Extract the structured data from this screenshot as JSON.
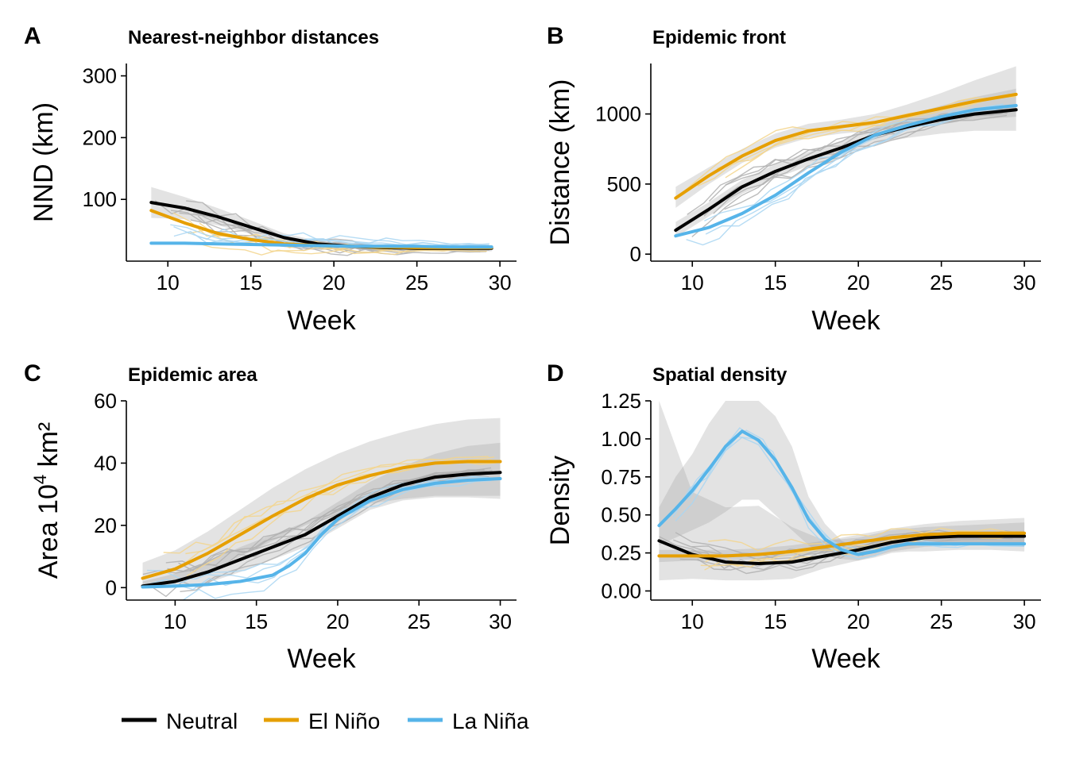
{
  "figure": {
    "legend": {
      "position": "bottom-left",
      "items": [
        {
          "label": "Neutral",
          "color": "#000000"
        },
        {
          "label": "El Niño",
          "color": "#E69F00"
        },
        {
          "label": "La Niña",
          "color": "#56B4E9"
        }
      ]
    }
  },
  "chart_data": [
    {
      "panel": "A",
      "title": "Nearest-neighbor distances",
      "type": "line",
      "xlabel": "Week",
      "ylabel": "NND (km)",
      "xlim": [
        7.5,
        31
      ],
      "ylim": [
        0,
        320
      ],
      "xticks": [
        10,
        15,
        20,
        25,
        30
      ],
      "yticks": [
        100,
        200,
        300
      ],
      "grid": false,
      "series": [
        {
          "name": "Neutral",
          "color": "#000000",
          "x": [
            9,
            11,
            13,
            15,
            17,
            19,
            21,
            23,
            25,
            27,
            29.5
          ],
          "y": [
            95,
            86,
            72,
            55,
            38,
            28,
            24,
            22,
            21,
            21,
            21
          ],
          "band": [
            [
              70,
              120
            ],
            [
              68,
              104
            ],
            [
              58,
              86
            ],
            [
              44,
              66
            ],
            [
              31,
              45
            ],
            [
              23,
              33
            ],
            [
              20,
              28
            ],
            [
              18,
              26
            ],
            [
              17,
              25
            ],
            [
              17,
              25
            ],
            [
              16,
              26
            ]
          ]
        },
        {
          "name": "El Niño",
          "color": "#E69F00",
          "x": [
            9,
            11,
            13,
            15,
            17,
            19,
            21,
            23,
            25,
            27,
            29.5
          ],
          "y": [
            82,
            62,
            45,
            35,
            28,
            25,
            24,
            23,
            22,
            22,
            22
          ]
        },
        {
          "name": "La Niña",
          "color": "#56B4E9",
          "x": [
            9,
            11,
            13,
            15,
            17,
            19,
            21,
            23,
            25,
            27,
            29.5
          ],
          "y": [
            29,
            29,
            28,
            27,
            26,
            25,
            24,
            24,
            24,
            23,
            23
          ]
        }
      ]
    },
    {
      "panel": "B",
      "title": "Epidemic front",
      "type": "line",
      "xlabel": "Week",
      "ylabel": "Distance (km)",
      "xlim": [
        7.5,
        31
      ],
      "ylim": [
        -50,
        1360
      ],
      "xticks": [
        10,
        15,
        20,
        25,
        30
      ],
      "yticks": [
        0,
        500,
        1000
      ],
      "grid": false,
      "series": [
        {
          "name": "Neutral",
          "color": "#000000",
          "x": [
            9,
            11,
            13,
            15,
            17,
            19,
            21,
            23,
            25,
            27,
            29.5
          ],
          "y": [
            170,
            320,
            480,
            590,
            680,
            760,
            850,
            910,
            960,
            1000,
            1030
          ],
          "band": [
            [
              120,
              230
            ],
            [
              270,
              370
            ],
            [
              430,
              530
            ],
            [
              540,
              640
            ],
            [
              630,
              730
            ],
            [
              710,
              810
            ],
            [
              790,
              910
            ],
            [
              830,
              990
            ],
            [
              860,
              1060
            ],
            [
              880,
              1120
            ],
            [
              880,
              1180
            ]
          ]
        },
        {
          "name": "El Niño",
          "color": "#E69F00",
          "x": [
            9,
            11,
            13,
            15,
            17,
            19,
            21,
            23,
            25,
            27,
            29.5
          ],
          "y": [
            400,
            560,
            700,
            810,
            880,
            910,
            940,
            990,
            1040,
            1090,
            1140
          ],
          "band": [
            [
              330,
              480
            ],
            [
              500,
              620
            ],
            [
              650,
              750
            ],
            [
              760,
              860
            ],
            [
              830,
              930
            ],
            [
              860,
              960
            ],
            [
              880,
              1000
            ],
            [
              910,
              1070
            ],
            [
              940,
              1150
            ],
            [
              960,
              1240
            ],
            [
              980,
              1340
            ]
          ]
        },
        {
          "name": "La Niña",
          "color": "#56B4E9",
          "x": [
            9,
            11,
            13,
            15,
            17,
            19,
            21,
            23,
            25,
            27,
            29.5
          ],
          "y": [
            130,
            190,
            290,
            420,
            580,
            730,
            850,
            920,
            980,
            1030,
            1060
          ]
        }
      ]
    },
    {
      "panel": "C",
      "title": "Epidemic area",
      "type": "line",
      "xlabel": "Week",
      "ylabel": "Area 10",
      "ylabel_sup": "4",
      "ylabel_unit": " km²",
      "xlim": [
        7,
        31
      ],
      "ylim": [
        -4,
        60
      ],
      "xticks": [
        10,
        15,
        20,
        25,
        30
      ],
      "yticks": [
        0,
        20,
        40,
        60
      ],
      "grid": false,
      "series": [
        {
          "name": "Neutral",
          "color": "#000000",
          "x": [
            8,
            10,
            12,
            14,
            16,
            18,
            20,
            22,
            24,
            26,
            28,
            30
          ],
          "y": [
            0.5,
            2,
            5,
            9,
            13,
            17,
            23,
            29,
            33,
            35.5,
            36.5,
            37
          ],
          "band": [
            [
              0,
              2
            ],
            [
              0,
              4.5
            ],
            [
              1.5,
              8.5
            ],
            [
              5,
              13
            ],
            [
              9,
              17
            ],
            [
              13,
              21
            ],
            [
              19,
              27.5
            ],
            [
              25,
              34
            ],
            [
              28,
              39
            ],
            [
              29,
              43
            ],
            [
              29,
              45.5
            ],
            [
              28.5,
              46.5
            ]
          ]
        },
        {
          "name": "El Niño",
          "color": "#E69F00",
          "x": [
            8,
            10,
            12,
            14,
            16,
            18,
            20,
            22,
            24,
            26,
            28,
            30
          ],
          "y": [
            3,
            6,
            11,
            17,
            23,
            28.5,
            33,
            36,
            38.5,
            40,
            40.5,
            40.5
          ],
          "band": [
            [
              0,
              8
            ],
            [
              2,
              12
            ],
            [
              5,
              18
            ],
            [
              10,
              25
            ],
            [
              15,
              32
            ],
            [
              20,
              38
            ],
            [
              24,
              43
            ],
            [
              27,
              47
            ],
            [
              28.5,
              50
            ],
            [
              29.5,
              52.5
            ],
            [
              29.5,
              54
            ],
            [
              29.5,
              54.5
            ]
          ]
        },
        {
          "name": "La Niña",
          "color": "#56B4E9",
          "x": [
            8,
            10,
            12,
            14,
            16,
            17,
            18,
            19,
            20,
            22,
            24,
            26,
            28,
            30
          ],
          "y": [
            0.2,
            0.5,
            1,
            2,
            4,
            7,
            11,
            17,
            22,
            28,
            31.5,
            33.5,
            34.5,
            35
          ]
        }
      ]
    },
    {
      "panel": "D",
      "title": "Spatial density",
      "type": "line",
      "xlabel": "Week",
      "ylabel": "Density",
      "xlim": [
        7.5,
        31
      ],
      "ylim": [
        -0.06,
        1.25
      ],
      "xticks": [
        10,
        15,
        20,
        25,
        30
      ],
      "yticks": [
        0.0,
        0.25,
        0.5,
        0.75,
        1.0,
        1.25
      ],
      "ytick_labels": [
        "0.00",
        "0.25",
        "0.50",
        "0.75",
        "1.00",
        "1.25"
      ],
      "grid": false,
      "series": [
        {
          "name": "Neutral",
          "color": "#000000",
          "x": [
            8,
            10,
            12,
            14,
            16,
            18,
            20,
            22,
            24,
            26,
            28,
            30
          ],
          "y": [
            0.33,
            0.24,
            0.19,
            0.18,
            0.19,
            0.23,
            0.27,
            0.32,
            0.35,
            0.36,
            0.36,
            0.36
          ],
          "band": [
            [
              0.07,
              1.25
            ],
            [
              0.08,
              0.65
            ],
            [
              0.07,
              0.55
            ],
            [
              0.07,
              0.56
            ],
            [
              0.08,
              0.42
            ],
            [
              0.15,
              0.33
            ],
            [
              0.2,
              0.35
            ],
            [
              0.26,
              0.4
            ],
            [
              0.29,
              0.42
            ],
            [
              0.3,
              0.43
            ],
            [
              0.3,
              0.44
            ],
            [
              0.29,
              0.45
            ]
          ]
        },
        {
          "name": "El Niño",
          "color": "#E69F00",
          "x": [
            8,
            10,
            12,
            14,
            16,
            18,
            20,
            22,
            24,
            26,
            28,
            30
          ],
          "y": [
            0.23,
            0.23,
            0.23,
            0.24,
            0.26,
            0.29,
            0.32,
            0.35,
            0.37,
            0.38,
            0.38,
            0.38
          ],
          "band": [
            [
              0.19,
              0.27
            ],
            [
              0.2,
              0.27
            ],
            [
              0.2,
              0.27
            ],
            [
              0.21,
              0.28
            ],
            [
              0.23,
              0.3
            ],
            [
              0.25,
              0.33
            ],
            [
              0.27,
              0.37
            ],
            [
              0.29,
              0.41
            ],
            [
              0.3,
              0.44
            ],
            [
              0.3,
              0.46
            ],
            [
              0.3,
              0.47
            ],
            [
              0.29,
              0.48
            ]
          ]
        },
        {
          "name": "La Niña",
          "color": "#56B4E9",
          "x": [
            8,
            9,
            10,
            11,
            12,
            13,
            14,
            15,
            16,
            17,
            18,
            19,
            20,
            21,
            22,
            23,
            24,
            26,
            28,
            30
          ],
          "y": [
            0.43,
            0.54,
            0.66,
            0.8,
            0.95,
            1.05,
            0.99,
            0.86,
            0.68,
            0.47,
            0.34,
            0.27,
            0.24,
            0.26,
            0.29,
            0.31,
            0.31,
            0.31,
            0.31,
            0.31
          ],
          "band": [
            [
              0.3,
              0.55
            ],
            [
              0.35,
              0.75
            ],
            [
              0.4,
              0.9
            ],
            [
              0.45,
              1.1
            ],
            [
              0.52,
              1.25
            ],
            [
              0.6,
              1.25
            ],
            [
              0.6,
              1.25
            ],
            [
              0.5,
              1.15
            ],
            [
              0.4,
              0.95
            ],
            [
              0.3,
              0.62
            ],
            [
              0.24,
              0.44
            ],
            [
              0.21,
              0.33
            ],
            [
              0.2,
              0.28
            ],
            [
              0.22,
              0.3
            ],
            [
              0.25,
              0.33
            ],
            [
              0.26,
              0.36
            ],
            [
              0.26,
              0.36
            ],
            [
              0.27,
              0.35
            ],
            [
              0.27,
              0.35
            ],
            [
              0.26,
              0.36
            ]
          ]
        }
      ]
    }
  ]
}
